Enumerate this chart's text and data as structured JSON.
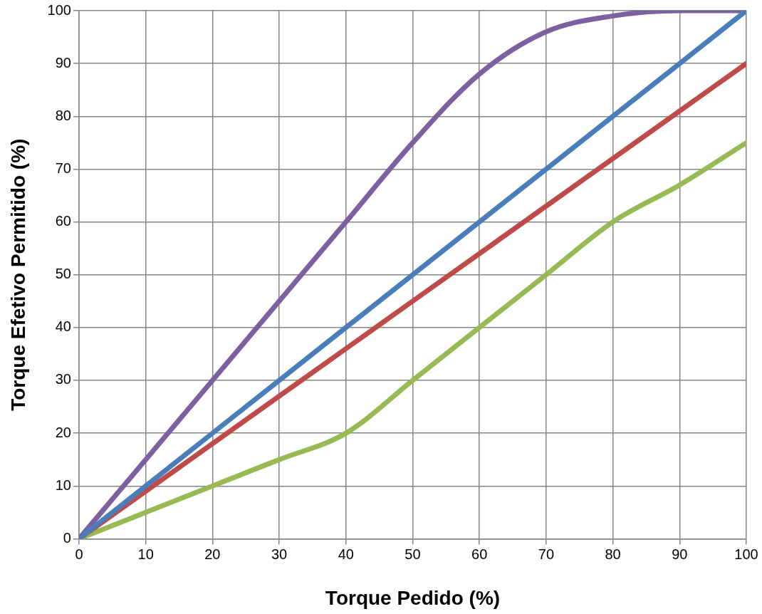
{
  "chart_data": {
    "type": "line",
    "xlabel": "Torque Pedido (%)",
    "ylabel": "Torque Efetivo Permitido (%)",
    "x": [
      0,
      10,
      20,
      30,
      40,
      50,
      60,
      70,
      80,
      90,
      100
    ],
    "series": [
      {
        "color": "#4a7ebb",
        "values": [
          0,
          10,
          20,
          30,
          40,
          50,
          60,
          70,
          80,
          90,
          100
        ]
      },
      {
        "color": "#be4b48",
        "values": [
          0,
          9,
          18,
          27,
          36,
          45,
          54,
          63,
          72,
          81,
          90
        ]
      },
      {
        "color": "#98b954",
        "values": [
          0,
          5,
          10,
          15,
          20,
          30,
          40,
          50,
          60,
          67,
          75
        ]
      },
      {
        "color": "#7d60a0",
        "values": [
          0,
          15,
          30,
          45,
          60,
          75,
          88,
          96,
          99,
          100,
          100
        ]
      }
    ],
    "xlim": [
      0,
      100
    ],
    "xticks": [
      0,
      10,
      20,
      30,
      40,
      50,
      60,
      70,
      80,
      90,
      100
    ],
    "ylim": [
      0,
      100
    ],
    "yticks": [
      0,
      10,
      20,
      30,
      40,
      50,
      60,
      70,
      80,
      90,
      100
    ],
    "grid": true,
    "legend": false,
    "marker": "none",
    "line_style": "solid"
  }
}
